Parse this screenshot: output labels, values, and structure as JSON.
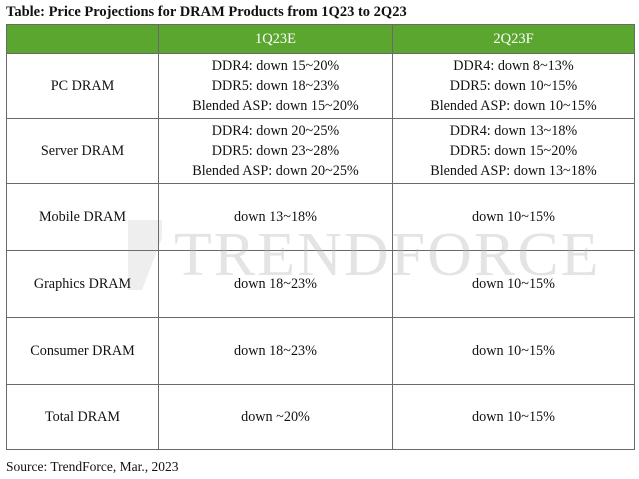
{
  "title": "Table: Price Projections for DRAM Products from 1Q23 to 2Q23",
  "header": {
    "corner": "",
    "col1": "1Q23E",
    "col2": "2Q23F"
  },
  "rows": [
    {
      "label": "PC DRAM",
      "q1": [
        "DDR4: down 15~20%",
        "DDR5: down 18~23%",
        "Blended ASP: down 15~20%"
      ],
      "q2": [
        "DDR4: down 8~13%",
        "DDR5: down 10~15%",
        "Blended ASP: down 10~15%"
      ]
    },
    {
      "label": "Server DRAM",
      "q1": [
        "DDR4: down 20~25%",
        "DDR5: down 23~28%",
        "Blended ASP: down 20~25%"
      ],
      "q2": [
        "DDR4: down 13~18%",
        "DDR5: down 15~20%",
        "Blended ASP: down 13~18%"
      ]
    },
    {
      "label": "Mobile DRAM",
      "q1": "down 13~18%",
      "q2": "down 10~15%"
    },
    {
      "label": "Graphics DRAM",
      "q1": "down 18~23%",
      "q2": "down 10~15%"
    },
    {
      "label": "Consumer DRAM",
      "q1": "down 18~23%",
      "q2": "down 10~15%"
    },
    {
      "label": "Total DRAM",
      "q1": "down ~20%",
      "q2": "down 10~15%"
    }
  ],
  "watermark": "TRENDFORCE",
  "source": "Source: TrendForce, Mar., 2023",
  "colors": {
    "header_bg": "#5ba62e",
    "header_text": "#ffffff",
    "border": "#6a6a6a"
  }
}
